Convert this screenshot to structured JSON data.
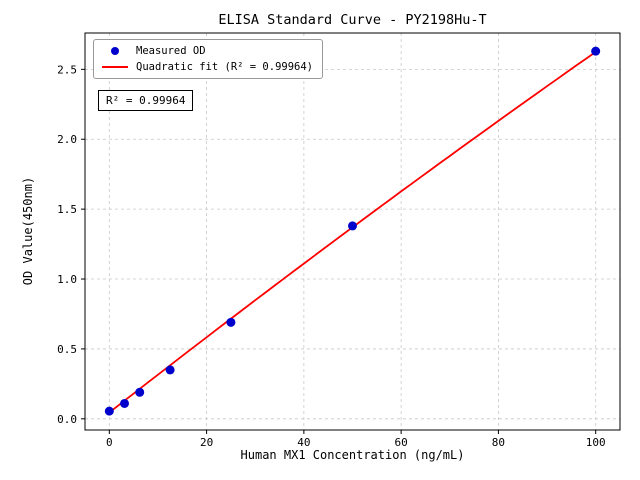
{
  "figure": {
    "background": "#ffffff",
    "frame_color": "#000000"
  },
  "chart_data": {
    "type": "scatter",
    "title": "ELISA Standard Curve - PY2198Hu-T",
    "xlabel": "Human MX1 Concentration (ng/mL)",
    "ylabel": "OD Value(450nm)",
    "xlim": [
      -5,
      105
    ],
    "ylim": [
      -0.08,
      2.76
    ],
    "x_ticks": [
      0,
      20,
      40,
      60,
      80,
      100
    ],
    "x_tick_labels": [
      "0",
      "20",
      "40",
      "60",
      "80",
      "100"
    ],
    "y_ticks": [
      0.0,
      0.5,
      1.0,
      1.5,
      2.0,
      2.5
    ],
    "y_tick_labels": [
      "0.0",
      "0.5",
      "1.0",
      "1.5",
      "2.0",
      "2.5"
    ],
    "grid": true,
    "grid_color": "#c8c8c8",
    "legend_position": "upper left",
    "series": [
      {
        "name": "Measured OD",
        "type": "scatter",
        "color": "#0000cd",
        "marker_radius": 4.5,
        "x": [
          0,
          3.125,
          6.25,
          12.5,
          25,
          50,
          100
        ],
        "y": [
          0.055,
          0.11,
          0.19,
          0.35,
          0.69,
          1.38,
          2.63
        ]
      },
      {
        "name": "Quadratic fit (R² = 0.99964)",
        "type": "line",
        "color": "#ff0000",
        "line_width": 1.8,
        "fit_coefficients": {
          "c0": 0.045,
          "c1": 0.0272,
          "c2": -1.4e-05
        },
        "x_range": [
          0,
          100
        ]
      }
    ],
    "annotation": {
      "text": "R² = 0.99964"
    }
  }
}
